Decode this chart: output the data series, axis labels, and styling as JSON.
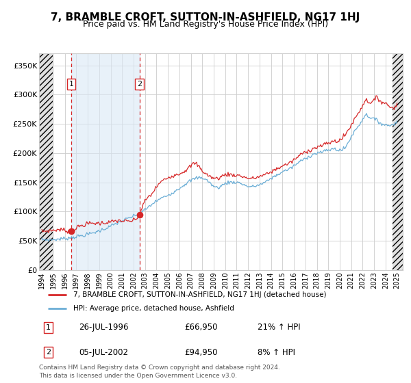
{
  "title": "7, BRAMBLE CROFT, SUTTON-IN-ASHFIELD, NG17 1HJ",
  "subtitle": "Price paid vs. HM Land Registry's House Price Index (HPI)",
  "ylim": [
    0,
    370000
  ],
  "xlim_start": 1993.75,
  "xlim_end": 2025.5,
  "yticks": [
    0,
    50000,
    100000,
    150000,
    200000,
    250000,
    300000,
    350000
  ],
  "ytick_labels": [
    "£0",
    "£50K",
    "£100K",
    "£150K",
    "£200K",
    "£250K",
    "£300K",
    "£350K"
  ],
  "xticks": [
    1994,
    1995,
    1996,
    1997,
    1998,
    1999,
    2000,
    2001,
    2002,
    2003,
    2004,
    2005,
    2006,
    2007,
    2008,
    2009,
    2010,
    2011,
    2012,
    2013,
    2014,
    2015,
    2016,
    2017,
    2018,
    2019,
    2020,
    2021,
    2022,
    2023,
    2024,
    2025
  ],
  "hpi_color": "#6baed6",
  "price_color": "#d62728",
  "marker_color": "#d62728",
  "sale1_date": 1996.56,
  "sale1_price": 66950,
  "sale2_date": 2002.51,
  "sale2_price": 94950,
  "hatch_left_end": 1994.92,
  "hatch_right_start": 2024.58,
  "legend_label1": "7, BRAMBLE CROFT, SUTTON-IN-ASHFIELD, NG17 1HJ (detached house)",
  "legend_label2": "HPI: Average price, detached house, Ashfield",
  "table_row1": [
    "1",
    "26-JUL-1996",
    "£66,950",
    "21% ↑ HPI"
  ],
  "table_row2": [
    "2",
    "05-JUL-2002",
    "£94,950",
    "8% ↑ HPI"
  ],
  "footer": "Contains HM Land Registry data © Crown copyright and database right 2024.\nThis data is licensed under the Open Government Licence v3.0.",
  "grid_color": "#cccccc",
  "shade_color": "#dae8f5",
  "title_fontsize": 11,
  "subtitle_fontsize": 9
}
